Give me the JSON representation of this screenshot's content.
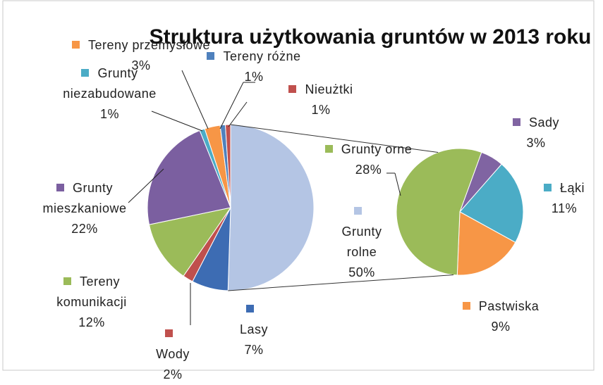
{
  "chart_data": [
    {
      "type": "pie",
      "title": "Struktura użytkowania gruntów w 2013 roku",
      "categories": [
        "Grunty rolne",
        "Lasy",
        "Wody",
        "Tereny komunikacji",
        "Grunty mieszkaniowe",
        "Grunty niezabudowane",
        "Tereny przemysłowe",
        "Tereny różne",
        "Nieużtki"
      ],
      "values": [
        50,
        7,
        2,
        12,
        22,
        1,
        3,
        1,
        1
      ],
      "value_labels": [
        "50%",
        "7%",
        "2%",
        "12%",
        "22%",
        "1%",
        "3%",
        "1%",
        "1%"
      ],
      "colors": [
        "#b4c5e4",
        "#3d6cb3",
        "#c0504d",
        "#9bbb59",
        "#7b5fa0",
        "#4bacc6",
        "#f79646",
        "#4f81bd",
        "#c0504d"
      ]
    },
    {
      "type": "pie",
      "categories": [
        "Sady",
        "Łąki",
        "Pastwiska",
        "Grunty orne"
      ],
      "values": [
        3,
        11,
        9,
        28
      ],
      "value_labels": [
        "3%",
        "11%",
        "9%",
        "28%"
      ],
      "colors": [
        "#8064a2",
        "#4bacc6",
        "#f79646",
        "#9bbb59"
      ]
    }
  ]
}
